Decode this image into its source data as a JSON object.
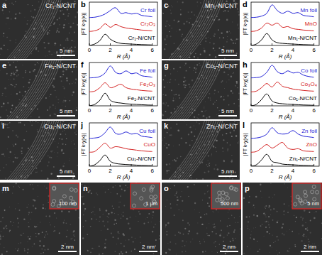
{
  "panels": [
    {
      "panel_label": "a",
      "label": "Cr₁-N/CNT",
      "scale_bar": "5 nm"
    },
    {
      "panel_label": "c",
      "label": "Mn₁-N/CNT",
      "scale_bar": "5 nm"
    },
    {
      "panel_label": "e",
      "label": "Fe₁-N/CNT",
      "scale_bar": "5 nm"
    },
    {
      "panel_label": "g",
      "label": "Co₁-N/CNT",
      "scale_bar": "5 nm"
    },
    {
      "panel_label": "i",
      "label": "Cu₁-N/CNT",
      "scale_bar": "5 nm"
    },
    {
      "panel_label": "k",
      "label": "Zn₁-N/CNT",
      "scale_bar": "5 nm"
    }
  ],
  "bottom_panels": [
    {
      "panel_label": "m",
      "scale_bar": "2 nm",
      "inset_scale_bar": "100 nm"
    },
    {
      "panel_label": "n",
      "scale_bar": "2 nm",
      "inset_scale_bar": "1 μm"
    },
    {
      "panel_label": "o",
      "scale_bar": "2 nm",
      "inset_scale_bar": "500 nm"
    },
    {
      "panel_label": "p",
      "scale_bar": "2 nm",
      "inset_scale_bar": "5 nm"
    }
  ],
  "chart_data": [
    {
      "type": "line",
      "panel_label": "b",
      "x_label": "R (Å)",
      "y_label": "|FT k³χ(κ)|",
      "x": [
        0,
        0.5,
        1,
        1.5,
        2,
        2.5,
        3,
        3.5,
        4,
        4.5,
        5,
        5.5,
        6
      ],
      "xlim": [
        0,
        6.5
      ],
      "xticks": [
        0,
        2,
        4,
        6
      ],
      "ylim": [
        0,
        3.1
      ],
      "tick_labels": "x",
      "series": [
        {
          "name": "Cr foil",
          "color": "#1f1fd6",
          "values": [
            2,
            2.02,
            2.1,
            2.25,
            2.5,
            2.7,
            2.3,
            2.35,
            2.25,
            2.3,
            2.15,
            2.1,
            2.05
          ]
        },
        {
          "name": "Cr₂O₃",
          "color": "#d42020",
          "values": [
            1,
            1.05,
            1.2,
            1.55,
            1.3,
            1.5,
            1.35,
            1.25,
            1.2,
            1.15,
            1.1,
            1.08,
            1.05
          ]
        },
        {
          "name": "Cr₁-N/CNT",
          "color": "#000000",
          "values": [
            0,
            0.1,
            0.35,
            0.8,
            0.45,
            0.25,
            0.15,
            0.12,
            0.1,
            0.08,
            0.06,
            0.05,
            0.04
          ]
        }
      ]
    },
    {
      "type": "line",
      "panel_label": "d",
      "x_label": "R (Å)",
      "y_label": "|FT k³χ(κ)|",
      "x": [
        0,
        0.5,
        1,
        1.5,
        2,
        2.5,
        3,
        3.5,
        4,
        4.5,
        5,
        5.5,
        6
      ],
      "xlim": [
        0,
        6.5
      ],
      "xticks": [
        0,
        2,
        4,
        6
      ],
      "ylim": [
        0,
        3.1
      ],
      "tick_labels": "x",
      "series": [
        {
          "name": "Mn foil",
          "color": "#1f1fd6",
          "values": [
            2,
            2.02,
            2.1,
            2.3,
            2.9,
            2.5,
            2.3,
            2.45,
            2.3,
            2.35,
            2.15,
            2.1,
            2.05
          ]
        },
        {
          "name": "MnO",
          "color": "#d42020",
          "values": [
            1,
            1.05,
            1.25,
            1.6,
            1.45,
            1.6,
            1.3,
            1.35,
            1.2,
            1.15,
            1.1,
            1.08,
            1.05
          ]
        },
        {
          "name": "Mn₁-N/CNT",
          "color": "#000000",
          "values": [
            0,
            0.1,
            0.4,
            0.85,
            0.4,
            0.2,
            0.15,
            0.12,
            0.1,
            0.08,
            0.06,
            0.05,
            0.04
          ]
        }
      ]
    },
    {
      "type": "line",
      "panel_label": "f",
      "x_label": "R (Å)",
      "y_label": "|FT k³χ(κ)|",
      "x": [
        0,
        0.5,
        1,
        1.5,
        2,
        2.5,
        3,
        3.5,
        4,
        4.5,
        5,
        5.5,
        6
      ],
      "xlim": [
        0,
        6.5
      ],
      "xticks": [
        0,
        2,
        4,
        6
      ],
      "ylim": [
        0,
        3.1
      ],
      "tick_labels": "x",
      "series": [
        {
          "name": "Fe foil",
          "color": "#1f1fd6",
          "values": [
            2,
            2.02,
            2.1,
            2.35,
            2.85,
            2.4,
            2.3,
            2.5,
            2.3,
            2.35,
            2.15,
            2.1,
            2.05
          ]
        },
        {
          "name": "Fe₂O₃",
          "color": "#d42020",
          "values": [
            1,
            1.05,
            1.3,
            1.65,
            1.3,
            1.4,
            1.55,
            1.3,
            1.2,
            1.15,
            1.1,
            1.07,
            1.05
          ]
        },
        {
          "name": "Fe₁-N/CNT",
          "color": "#000000",
          "values": [
            0,
            0.1,
            0.4,
            0.9,
            0.4,
            0.25,
            0.2,
            0.15,
            0.12,
            0.1,
            0.08,
            0.06,
            0.05
          ]
        }
      ]
    },
    {
      "type": "line",
      "panel_label": "h",
      "x_label": "R (Å)",
      "y_label": "|FT k³χ(κ)|",
      "x": [
        0,
        0.5,
        1,
        1.5,
        2,
        2.5,
        3,
        3.5,
        4,
        4.5,
        5,
        5.5,
        6
      ],
      "xlim": [
        0,
        6.5
      ],
      "xticks": [
        0,
        2,
        4,
        6
      ],
      "ylim": [
        0,
        3.1
      ],
      "tick_labels": "x",
      "series": [
        {
          "name": "Co foil",
          "color": "#1f1fd6",
          "values": [
            2,
            2.02,
            2.1,
            2.4,
            2.9,
            2.45,
            2.3,
            2.5,
            2.35,
            2.4,
            2.2,
            2.1,
            2.05
          ]
        },
        {
          "name": "Co₃O₄",
          "color": "#d42020",
          "values": [
            1,
            1.05,
            1.3,
            1.6,
            1.35,
            1.7,
            1.4,
            1.3,
            1.2,
            1.15,
            1.1,
            1.07,
            1.05
          ]
        },
        {
          "name": "Co₁-N/CNT",
          "color": "#000000",
          "values": [
            0,
            0.1,
            0.45,
            0.85,
            0.35,
            0.2,
            0.15,
            0.12,
            0.1,
            0.08,
            0.06,
            0.05,
            0.04
          ]
        }
      ]
    },
    {
      "type": "line",
      "panel_label": "j",
      "x_label": "R (Å)",
      "y_label": "|FT k³χ(κ)|",
      "x": [
        0,
        0.5,
        1,
        1.5,
        2,
        2.5,
        3,
        3.5,
        4,
        4.5,
        5,
        5.5,
        6
      ],
      "xlim": [
        0,
        6.5
      ],
      "xticks": [
        0,
        2,
        4,
        6
      ],
      "ylim": [
        0,
        3.1
      ],
      "tick_labels": "x",
      "series": [
        {
          "name": "Cu foil",
          "color": "#1f1fd6",
          "values": [
            2,
            2.02,
            2.1,
            2.4,
            2.8,
            2.35,
            2.3,
            2.45,
            2.3,
            2.35,
            2.15,
            2.1,
            2.05
          ]
        },
        {
          "name": "CuO",
          "color": "#d42020",
          "values": [
            1,
            1.05,
            1.35,
            1.65,
            1.3,
            1.4,
            1.35,
            1.25,
            1.2,
            1.15,
            1.1,
            1.07,
            1.05
          ]
        },
        {
          "name": "Cu₁-N/CNT",
          "color": "#000000",
          "values": [
            0,
            0.1,
            0.4,
            0.8,
            0.35,
            0.2,
            0.15,
            0.12,
            0.1,
            0.08,
            0.06,
            0.05,
            0.04
          ]
        }
      ]
    },
    {
      "type": "line",
      "panel_label": "l",
      "x_label": "R (Å)",
      "y_label": "|FT k³χ(κ)|",
      "x": [
        0,
        0.5,
        1,
        1.5,
        2,
        2.5,
        3,
        3.5,
        4,
        4.5,
        5,
        5.5,
        6
      ],
      "xlim": [
        0,
        6.5
      ],
      "xticks": [
        0,
        2,
        4,
        6
      ],
      "ylim": [
        0,
        3.1
      ],
      "tick_labels": "x",
      "series": [
        {
          "name": "Zn foil",
          "color": "#1f1fd6",
          "values": [
            2,
            2.02,
            2.1,
            2.3,
            2.75,
            2.4,
            2.3,
            2.35,
            2.55,
            2.3,
            2.15,
            2.1,
            2.05
          ]
        },
        {
          "name": "ZnO",
          "color": "#d42020",
          "values": [
            1,
            1.05,
            1.3,
            1.55,
            1.3,
            1.5,
            1.7,
            1.3,
            1.2,
            1.25,
            1.1,
            1.07,
            1.05
          ]
        },
        {
          "name": "Zn₁-N/CNT",
          "color": "#000000",
          "values": [
            0,
            0.1,
            0.45,
            0.85,
            0.35,
            0.25,
            0.15,
            0.12,
            0.1,
            0.08,
            0.06,
            0.05,
            0.04
          ]
        }
      ]
    }
  ]
}
